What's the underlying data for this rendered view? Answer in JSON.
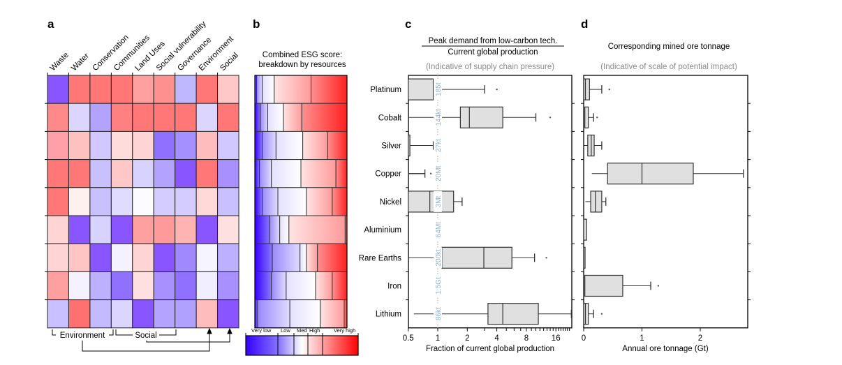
{
  "panels": {
    "a": {
      "label": "a"
    },
    "b": {
      "label": "b",
      "title_line1": "Combined ESG score:",
      "title_line2": "breakdown by resources"
    },
    "c": {
      "label": "c",
      "title_numerator": "Peak demand from low-carbon tech.",
      "title_denominator": "Current global production",
      "subtitle": "(Indicative of supply chain pressure)",
      "xlabel": "Fraction of current global production"
    },
    "d": {
      "label": "d",
      "title": "Corresponding mined ore tonnage",
      "subtitle": "(Indicative of scale of potential impact)",
      "xlabel": "Annual ore tonnage (Gt)"
    }
  },
  "groups": {
    "environment": "Environment",
    "social": "Social"
  },
  "colorbar": {
    "labels": [
      "Very low",
      "Low",
      "Med",
      "High",
      "Very high"
    ]
  },
  "chart_data": [
    {
      "type": "heatmap",
      "panel": "a",
      "columns": [
        "Waste",
        "Water",
        "Conservation",
        "Communities",
        "Land Uses",
        "Social vulnerability",
        "Governance",
        "Environment",
        "Social"
      ],
      "rows": [
        "Platinum",
        "Cobalt",
        "Silver",
        "Copper",
        "Nickel",
        "Aluminium",
        "Rare Earths",
        "Iron",
        "Lithium"
      ],
      "colors": [
        [
          "#8855ff",
          "#ff7777",
          "#ff7777",
          "#ff7777",
          "#ffa0a0",
          "#ff9090",
          "#c0b8ff",
          "#ff7777",
          "#ffc8c8"
        ],
        [
          "#ff8888",
          "#dcd6ff",
          "#b3a3ff",
          "#ff8080",
          "#ff7777",
          "#ff7777",
          "#ff7777",
          "#dcd6ff",
          "#ff7777"
        ],
        [
          "#ffa0a8",
          "#ffc0c0",
          "#d0c8ff",
          "#ffdcdc",
          "#ffd4d4",
          "#9070ff",
          "#a490ff",
          "#ffbcbc",
          "#d0c8ff"
        ],
        [
          "#ff7777",
          "#ff7777",
          "#c8c0ff",
          "#ffc8c8",
          "#d8d2ff",
          "#b4a2ff",
          "#8855ff",
          "#ff7777",
          "#a890ff"
        ],
        [
          "#ff7777",
          "#fff0f0",
          "#c8c0ff",
          "#e0dcff",
          "#fcfcff",
          "#d4ccff",
          "#d4ccff",
          "#ffd8d8",
          "#c8c0ff"
        ],
        [
          "#ffd4d4",
          "#8855ff",
          "#d8d2ff",
          "#8855ff",
          "#ffa0a0",
          "#ff9a9a",
          "#ffb4b4",
          "#8855ff",
          "#ffe0e0"
        ],
        [
          "#ffd4d4",
          "#ffc4c4",
          "#8855ff",
          "#f4f2ff",
          "#ffd4d4",
          "#8855ff",
          "#a088ff",
          "#f6f4ff",
          "#bcb0ff"
        ],
        [
          "#ffa0a0",
          "#f4f2ff",
          "#bcb0ff",
          "#9070ff",
          "#ffe0e0",
          "#a890ff",
          "#9070ff",
          "#f0eeff",
          "#a890ff"
        ],
        [
          "#c8c0ff",
          "#ff7070",
          "#c4baff",
          "#dcd6ff",
          "#8855ff",
          "#b4a4ff",
          "#b0a0ff",
          "#ffbcbc",
          "#8855ff"
        ]
      ]
    },
    {
      "type": "bar",
      "stacked": true,
      "panel": "b",
      "categories": [
        "Platinum",
        "Cobalt",
        "Silver",
        "Copper",
        "Nickel",
        "Aluminium",
        "Rare Earths",
        "Iron",
        "Lithium"
      ],
      "series_levels": [
        "Very low",
        "Low",
        "Med",
        "High",
        "Very high"
      ],
      "fractions": [
        [
          0.02,
          0.06,
          0.13,
          0.4,
          0.39
        ],
        [
          0.06,
          0.08,
          0.17,
          0.2,
          0.49
        ],
        [
          0.08,
          0.15,
          0.29,
          0.27,
          0.21
        ],
        [
          0.05,
          0.13,
          0.32,
          0.38,
          0.12
        ],
        [
          0.08,
          0.17,
          0.31,
          0.28,
          0.16
        ],
        [
          0.16,
          0.11,
          0.1,
          0.61,
          0.02
        ],
        [
          0.19,
          0.3,
          0.07,
          0.12,
          0.32
        ],
        [
          0.18,
          0.16,
          0.32,
          0.18,
          0.16
        ],
        [
          0.03,
          0.35,
          0.33,
          0.26,
          0.03
        ]
      ],
      "colors": {
        "low": "#3300ff",
        "mid": "#ffffff",
        "high": "#ff0000"
      }
    },
    {
      "type": "box",
      "panel": "c",
      "scale": "log2",
      "xlim": [
        0.5,
        23
      ],
      "xticks": [
        "0.5",
        "1",
        "2",
        "4",
        "8",
        "16"
      ],
      "categories": [
        "Platinum",
        "Cobalt",
        "Silver",
        "Copper",
        "Nickel",
        "Aluminium",
        "Rare Earths",
        "Iron",
        "Lithium"
      ],
      "production_labels": [
        "185t",
        "144kt",
        "27kt",
        "20Mt",
        "3Mt",
        "64Mt",
        "200kt",
        "1.5Gt",
        "86kt"
      ],
      "boxes": [
        {
          "wlo": null,
          "q1": 0.5,
          "med": null,
          "q3": 0.9,
          "whi": 3.0,
          "outliers": [
            4.0
          ]
        },
        {
          "wlo": 0.5,
          "q1": 1.7,
          "med": 2.1,
          "q3": 4.6,
          "whi": 10,
          "outliers": [
            14
          ]
        },
        {
          "wlo": null,
          "q1": 0.5,
          "med": null,
          "q3": 0.52,
          "whi": 0.9,
          "outliers": []
        },
        {
          "wlo": 0.5,
          "q1": null,
          "med": null,
          "q3": null,
          "whi": 0.74,
          "outliers": [
            0.85
          ]
        },
        {
          "wlo": null,
          "q1": 0.5,
          "med": 0.83,
          "q3": 1.45,
          "whi": 1.77,
          "outliers": []
        },
        null,
        {
          "wlo": 0.5,
          "q1": 1.1,
          "med": 2.95,
          "q3": 5.7,
          "whi": 9.7,
          "outliers": [
            12.8
          ]
        },
        null,
        {
          "wlo": 0.57,
          "q1": 3.25,
          "med": 4.6,
          "q3": 10.6,
          "whi": 23,
          "outliers": []
        }
      ]
    },
    {
      "type": "box",
      "panel": "d",
      "xlim": [
        0,
        2.81
      ],
      "xticks": [
        "0",
        "1",
        "2"
      ],
      "categories": [
        "Platinum",
        "Cobalt",
        "Silver",
        "Copper",
        "Nickel",
        "Aluminium",
        "Rare Earths",
        "Iron",
        "Lithium"
      ],
      "boxes": [
        {
          "wlo": null,
          "q1": 0.0,
          "med": 0.03,
          "q3": 0.1,
          "whi": 0.31,
          "outliers": [
            0.44
          ]
        },
        {
          "wlo": null,
          "q1": 0.02,
          "med": null,
          "q3": 0.08,
          "whi": 0.17,
          "outliers": [
            0.23
          ]
        },
        {
          "wlo": 0.0,
          "q1": 0.07,
          "med": 0.13,
          "q3": 0.18,
          "whi": 0.31,
          "outliers": []
        },
        {
          "wlo": 0.14,
          "q1": 0.41,
          "med": 1.0,
          "q3": 1.88,
          "whi": 2.74,
          "outliers": []
        },
        {
          "wlo": 0.03,
          "q1": 0.12,
          "med": 0.2,
          "q3": 0.31,
          "whi": 0.38,
          "outliers": []
        },
        {
          "wlo": null,
          "q1": 0.0,
          "med": null,
          "q3": 0.05,
          "whi": null,
          "outliers": []
        },
        {
          "wlo": null,
          "q1": 0.0,
          "med": null,
          "q3": 0.01,
          "whi": null,
          "outliers": []
        },
        {
          "wlo": null,
          "q1": 0.02,
          "med": null,
          "q3": 0.67,
          "whi": 1.15,
          "outliers": [
            1.28
          ]
        },
        {
          "wlo": null,
          "q1": 0.0,
          "med": 0.03,
          "q3": 0.08,
          "whi": 0.17,
          "outliers": [
            0.31
          ]
        }
      ]
    }
  ]
}
